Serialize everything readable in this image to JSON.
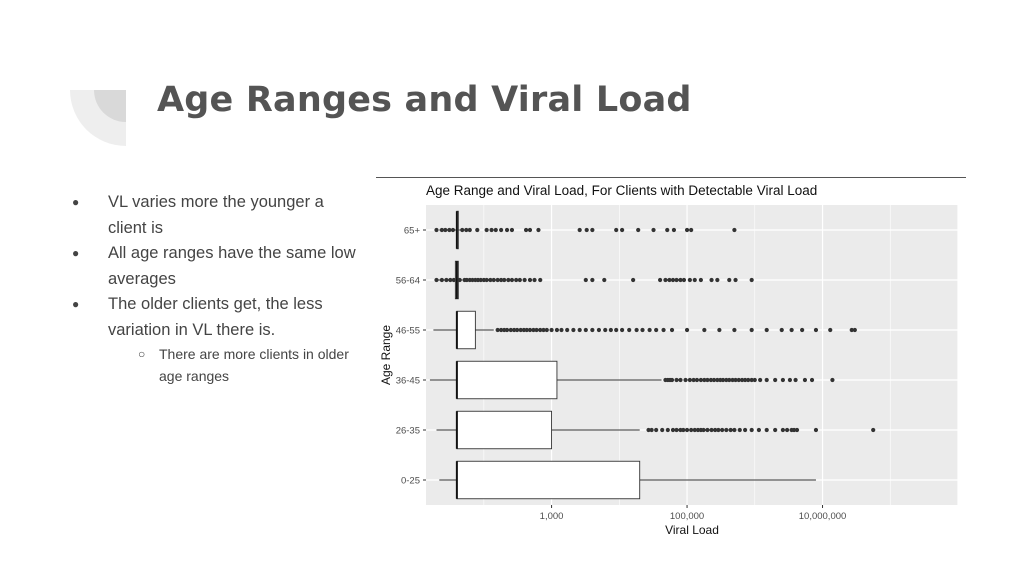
{
  "slide": {
    "title": "Age Ranges and Viral Load",
    "bullets": [
      {
        "text": "VL varies more the younger a client is"
      },
      {
        "text": "All age ranges have the same  low averages"
      },
      {
        "text": "The older clients get, the less variation in VL there is.",
        "sub": [
          "There are more clients in older age ranges"
        ]
      }
    ]
  },
  "colors": {
    "panel": "#EBEBEB",
    "grid": "#FFFFFF",
    "point": "#333333",
    "title": "#545454",
    "text": "#444444"
  },
  "chart_data": {
    "type": "boxplot",
    "title": "Age Range and Viral Load, For Clients with Detectable Viral Load",
    "xlabel": "Viral Load",
    "ylabel": "Age Range",
    "x_scale": "log10",
    "xlim": [
      14,
      1000000000
    ],
    "x_ticks": [
      1000,
      100000,
      10000000
    ],
    "x_tick_labels": [
      "1,000",
      "100,000",
      "10,000,000"
    ],
    "grid": true,
    "categories": [
      "0-25",
      "26-35",
      "36-45",
      "46-55",
      "56-64",
      "65+"
    ],
    "boxes": [
      {
        "category": "0-25",
        "whisker_low": 22,
        "q1": 40,
        "median": 40,
        "q3": 20000,
        "whisker_high": 8000000,
        "outliers": []
      },
      {
        "category": "26-35",
        "whisker_low": 20,
        "q1": 40,
        "median": 40,
        "q3": 1000,
        "whisker_high": 20000,
        "outliers": [
          27000,
          30000,
          35000,
          43000,
          52000,
          62000,
          70000,
          80000,
          88000,
          100000,
          115000,
          130000,
          145000,
          160000,
          175000,
          200000,
          230000,
          260000,
          290000,
          330000,
          380000,
          440000,
          500000,
          600000,
          720000,
          900000,
          1150000,
          1500000,
          2000000,
          2600000,
          3000000,
          3500000,
          3800000,
          4200000,
          8000000,
          56000000
        ]
      },
      {
        "category": "36-45",
        "whisker_low": 16,
        "q1": 40,
        "median": 40,
        "q3": 1200,
        "whisker_high": 42000,
        "outliers": [
          48000,
          52000,
          56000,
          60000,
          70000,
          80000,
          95000,
          110000,
          125000,
          140000,
          160000,
          180000,
          200000,
          225000,
          250000,
          280000,
          310000,
          340000,
          380000,
          420000,
          470000,
          520000,
          580000,
          650000,
          720000,
          800000,
          900000,
          1000000,
          1200000,
          1500000,
          2000000,
          2600000,
          3300000,
          4000000,
          5500000,
          7000000,
          14000000
        ]
      },
      {
        "category": "46-55",
        "whisker_low": 18,
        "q1": 40,
        "median": 40,
        "q3": 75,
        "whisker_high": 140,
        "outliers": [
          160,
          180,
          200,
          220,
          250,
          280,
          310,
          350,
          390,
          430,
          480,
          540,
          600,
          680,
          760,
          850,
          1000,
          1200,
          1400,
          1700,
          2100,
          2600,
          3200,
          4000,
          5000,
          6200,
          7500,
          9000,
          11000,
          14000,
          18000,
          22000,
          28000,
          35000,
          45000,
          60000,
          100000,
          180000,
          300000,
          500000,
          900000,
          1500000,
          2500000,
          3500000,
          5000000,
          8000000,
          13000000,
          27000000,
          30000000
        ]
      },
      {
        "category": "56-64",
        "whisker_low": 20,
        "q1": 38,
        "median": 40,
        "q3": 42,
        "whisker_high": 48,
        "outliers": [
          20,
          24,
          28,
          32,
          36,
          44,
          52,
          56,
          62,
          68,
          75,
          82,
          90,
          100,
          110,
          125,
          140,
          160,
          180,
          200,
          230,
          260,
          300,
          340,
          400,
          480,
          560,
          680,
          3200,
          4000,
          6000,
          16000,
          40000,
          48000,
          55000,
          62000,
          70000,
          80000,
          90000,
          110000,
          130000,
          160000,
          230000,
          280000,
          420000,
          520000,
          900000
        ]
      },
      {
        "category": "65+",
        "whisker_low": 22,
        "q1": 40,
        "median": 40,
        "q3": 42,
        "whisker_high": 46,
        "outliers": [
          20,
          24,
          27,
          31,
          35,
          48,
          55,
          62,
          80,
          110,
          130,
          150,
          180,
          220,
          260,
          420,
          480,
          640,
          2600,
          3300,
          4000,
          9000,
          11000,
          19000,
          32000,
          51000,
          64000,
          100000,
          115000,
          500000
        ]
      }
    ]
  }
}
